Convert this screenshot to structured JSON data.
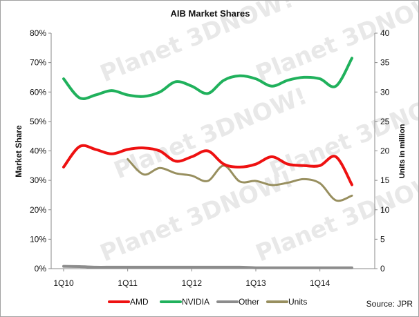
{
  "chart_data": {
    "type": "line",
    "title": "AIB Market Shares",
    "ylabel": "Market Share",
    "y2label": "Units in million",
    "ylim": [
      0,
      0.8
    ],
    "y2lim": [
      0,
      40
    ],
    "yticks": [
      "0%",
      "10%",
      "20%",
      "30%",
      "40%",
      "50%",
      "60%",
      "70%",
      "80%"
    ],
    "y2ticks": [
      "0",
      "5",
      "10",
      "15",
      "20",
      "25",
      "30",
      "35",
      "40"
    ],
    "x": [
      "1Q10",
      "2Q10",
      "3Q10",
      "4Q10",
      "1Q11",
      "2Q11",
      "3Q11",
      "4Q11",
      "1Q12",
      "2Q12",
      "3Q12",
      "4Q12",
      "1Q13",
      "2Q13",
      "3Q13",
      "4Q13",
      "1Q14",
      "2Q14",
      "3Q14"
    ],
    "xtick_labels": [
      "1Q10",
      "1Q11",
      "1Q12",
      "1Q13",
      "1Q14"
    ],
    "xtick_positions": [
      "1Q10",
      "1Q11",
      "1Q12",
      "1Q13",
      "1Q14"
    ],
    "grid": false,
    "legend_placement": "bottom",
    "source": "Source: JPR",
    "watermark": "Planet 3DNOW!",
    "series": [
      {
        "name": "AMD",
        "axis": "left",
        "color": "#ee1111",
        "values": [
          0.345,
          0.415,
          0.405,
          0.39,
          0.405,
          0.41,
          0.4,
          0.365,
          0.38,
          0.4,
          0.355,
          0.345,
          0.355,
          0.38,
          0.355,
          0.35,
          0.35,
          0.38,
          0.285
        ]
      },
      {
        "name": "NVIDIA",
        "axis": "left",
        "color": "#20b15c",
        "values": [
          0.645,
          0.58,
          0.59,
          0.605,
          0.59,
          0.585,
          0.6,
          0.635,
          0.62,
          0.595,
          0.64,
          0.655,
          0.645,
          0.62,
          0.64,
          0.65,
          0.645,
          0.62,
          0.715
        ]
      },
      {
        "name": "Other",
        "axis": "left",
        "color": "#8c8c8c",
        "values": [
          0.008,
          0.007,
          0.005,
          0.005,
          0.005,
          0.005,
          0.005,
          0.005,
          0.005,
          0.005,
          0.005,
          0.005,
          0.003,
          0.003,
          0.003,
          0.003,
          0.003,
          0.003,
          0.003
        ]
      },
      {
        "name": "Units",
        "axis": "right",
        "color": "#988f5f",
        "values": [
          null,
          null,
          null,
          null,
          18.6,
          16.0,
          17.1,
          16.2,
          15.8,
          14.9,
          17.5,
          14.8,
          14.9,
          14.2,
          14.6,
          15.2,
          14.5,
          11.6,
          12.4
        ]
      }
    ]
  }
}
